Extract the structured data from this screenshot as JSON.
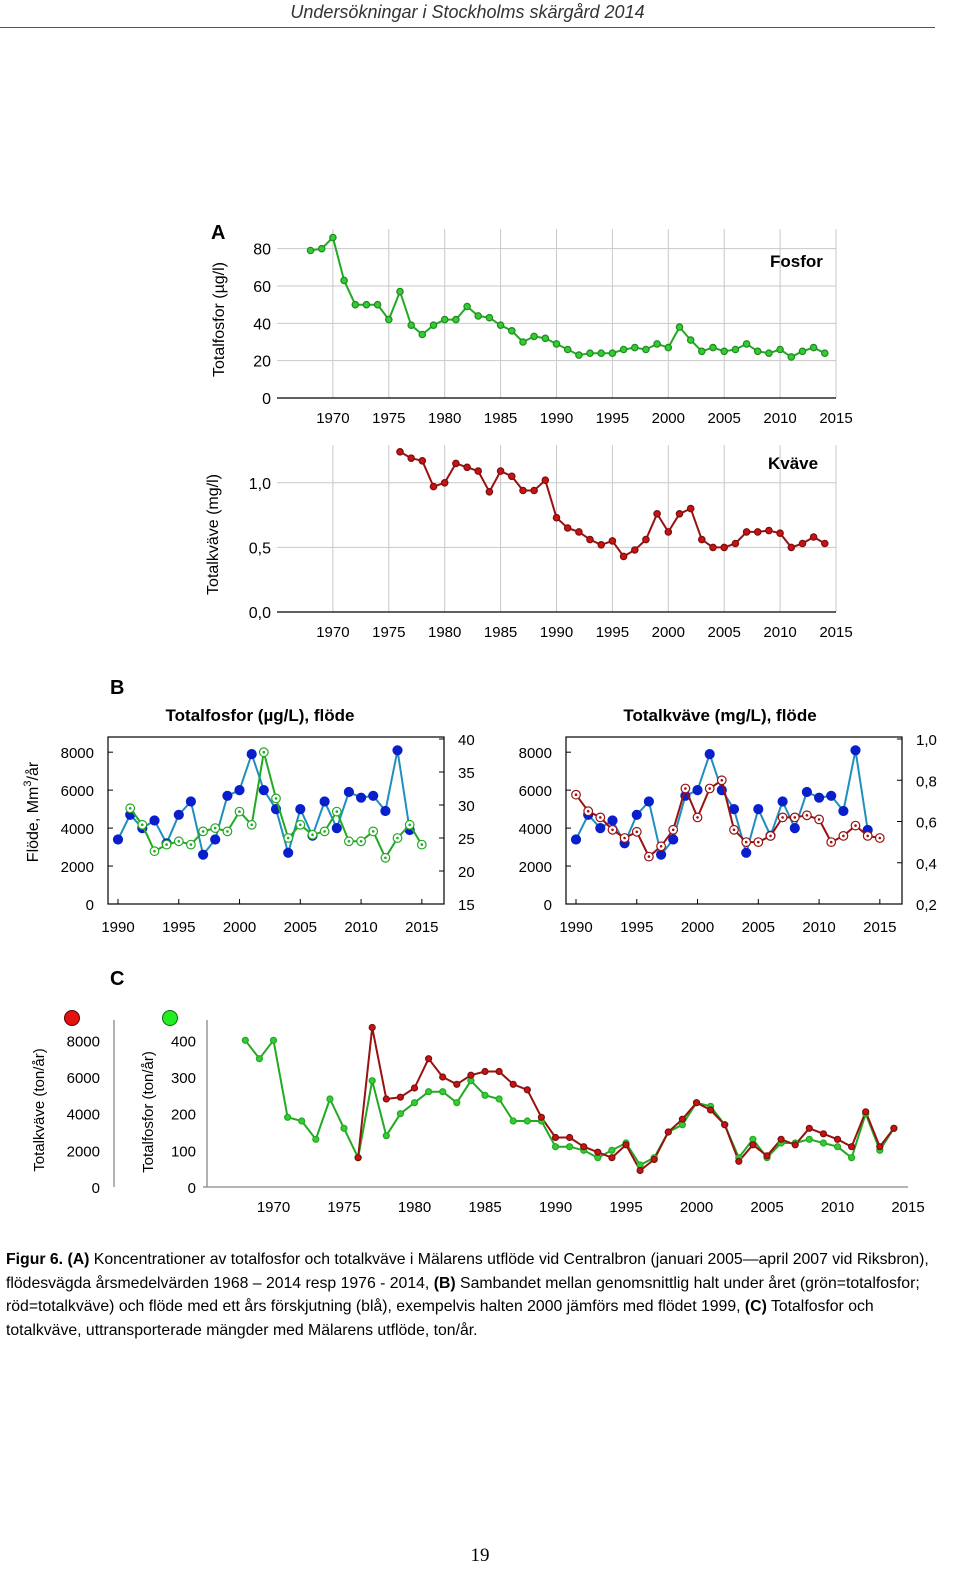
{
  "page": {
    "header": "Undersökningar i Stockholms skärgård 2014",
    "page_number": "19"
  },
  "caption": {
    "label": "Figur 6.",
    "a_tag": "(A)",
    "a_text": " Koncentrationer av totalfosfor och totalkväve i Mälarens utflöde vid Centralbron (januari 2005—april 2007 vid Riksbron), flödesvägda årsmedelvärden 1968 – 2014 resp 1976 - 2014, ",
    "b_tag": "(B)",
    "b_text": " Sambandet mellan genomsnittlig halt under året (grön=totalfosfor; röd=totalkväve) och flöde med ett års förskjutning (blå), exempelvis halten 2000 jämförs med flödet 1999, ",
    "c_tag": "(C)",
    "c_text": " Totalfosfor och totalkväve, uttransporterade mängder med Mälarens utflöde, ton/år."
  },
  "colors": {
    "green": "#33cc33",
    "green_line": "#22aa22",
    "red": "#cc1111",
    "red_line": "#991111",
    "blue": "#0a1fcc",
    "blue_line": "#1f8fbf",
    "grid": "#c8c8c8"
  },
  "chart_data": [
    {
      "id": "A1",
      "panel": "A",
      "type": "line",
      "title": "Fosfor",
      "ylabel": "Totalfosfor (µg/l)",
      "xlim": [
        1965,
        2015
      ],
      "ylim": [
        0,
        90
      ],
      "xticks": [
        "1970",
        "1975",
        "1980",
        "1985",
        "1990",
        "1995",
        "2000",
        "2005",
        "2010",
        "2015"
      ],
      "yticks": [
        "0",
        "20",
        "40",
        "60",
        "80"
      ],
      "series": [
        {
          "name": "Totalfosfor",
          "x": [
            1968,
            1969,
            1970,
            1971,
            1972,
            1973,
            1974,
            1975,
            1976,
            1977,
            1978,
            1979,
            1980,
            1981,
            1982,
            1983,
            1984,
            1985,
            1986,
            1987,
            1988,
            1989,
            1990,
            1991,
            1992,
            1993,
            1994,
            1995,
            1996,
            1997,
            1998,
            1999,
            2000,
            2001,
            2002,
            2003,
            2004,
            2005,
            2006,
            2007,
            2008,
            2009,
            2010,
            2011,
            2012,
            2013,
            2014
          ],
          "values": [
            79,
            80,
            86,
            63,
            50,
            50,
            50,
            42,
            57,
            39,
            34,
            39,
            42,
            42,
            49,
            44,
            43,
            39,
            36,
            30,
            33,
            32,
            29,
            26,
            23,
            24,
            24,
            24,
            26,
            27,
            26,
            29,
            27,
            38,
            31,
            25,
            27,
            25,
            26,
            29,
            25,
            24,
            26,
            22,
            25,
            27,
            24
          ]
        }
      ]
    },
    {
      "id": "A2",
      "panel": "A",
      "type": "line",
      "title": "Kväve",
      "ylabel": "Totalkväve (mg/l)",
      "xlim": [
        1965,
        2015
      ],
      "ylim": [
        0,
        1.3
      ],
      "xticks": [
        "1970",
        "1975",
        "1980",
        "1985",
        "1990",
        "1995",
        "2000",
        "2005",
        "2010",
        "2015"
      ],
      "yticks": [
        "0,0",
        "0,5",
        "1,0"
      ],
      "series": [
        {
          "name": "Totalkväve",
          "x": [
            1976,
            1977,
            1978,
            1979,
            1980,
            1981,
            1982,
            1983,
            1984,
            1985,
            1986,
            1987,
            1988,
            1989,
            1990,
            1991,
            1992,
            1993,
            1994,
            1995,
            1996,
            1997,
            1998,
            1999,
            2000,
            2001,
            2002,
            2003,
            2004,
            2005,
            2006,
            2007,
            2008,
            2009,
            2010,
            2011,
            2012,
            2013,
            2014
          ],
          "values": [
            1.24,
            1.19,
            1.17,
            0.97,
            1.0,
            1.15,
            1.12,
            1.09,
            0.93,
            1.09,
            1.05,
            0.94,
            0.94,
            1.02,
            0.73,
            0.65,
            0.62,
            0.56,
            0.52,
            0.55,
            0.43,
            0.48,
            0.56,
            0.76,
            0.62,
            0.76,
            0.8,
            0.56,
            0.5,
            0.5,
            0.53,
            0.62,
            0.62,
            0.63,
            0.61,
            0.5,
            0.53,
            0.58,
            0.53
          ]
        }
      ]
    },
    {
      "id": "B1",
      "panel": "B",
      "type": "line",
      "title": "Totalfosfor (µg/L), flöde",
      "ylabel": "Flöde, Mm³/år",
      "ylabel_main": "Flöde, Mm",
      "ylabel_sup": "3",
      "ylabel_end": "/år",
      "xlim": [
        1990,
        2016
      ],
      "ylim": [
        0,
        8800
      ],
      "ylim_right": [
        15,
        40
      ],
      "xticks": [
        "1990",
        "1995",
        "2000",
        "2005",
        "2010",
        "2015"
      ],
      "yticks": [
        "0",
        "2000",
        "4000",
        "6000",
        "8000"
      ],
      "yticks_right": [
        "15",
        "20",
        "25",
        "30",
        "35",
        "40"
      ],
      "series": [
        {
          "name": "Flöde",
          "axis": "left",
          "x": [
            1990,
            1991,
            1992,
            1993,
            1994,
            1995,
            1996,
            1997,
            1998,
            1999,
            2000,
            2001,
            2002,
            2003,
            2004,
            2005,
            2006,
            2007,
            2008,
            2009,
            2010,
            2011,
            2012,
            2013,
            2014,
            2015
          ],
          "values": [
            3400,
            4700,
            4000,
            4400,
            3200,
            4700,
            5400,
            2600,
            3400,
            5700,
            6000,
            7900,
            6000,
            5000,
            2700,
            5000,
            3600,
            5400,
            4000,
            5900,
            5600,
            5700,
            4900,
            8100,
            3900,
            null
          ]
        },
        {
          "name": "Totalfosfor",
          "axis": "right",
          "x": [
            1991,
            1992,
            1993,
            1994,
            1995,
            1996,
            1997,
            1998,
            1999,
            2000,
            2001,
            2002,
            2003,
            2004,
            2005,
            2006,
            2007,
            2008,
            2009,
            2010,
            2011,
            2012,
            2013,
            2014,
            2015
          ],
          "values": [
            29.5,
            27,
            23,
            24,
            24.5,
            24,
            26,
            26.5,
            26,
            29,
            27,
            38,
            31,
            25,
            27,
            25.5,
            26,
            29,
            24.5,
            24.5,
            26,
            22,
            25,
            27,
            24
          ]
        }
      ]
    },
    {
      "id": "B2",
      "panel": "B",
      "type": "line",
      "title": "Totalkväve (mg/L), flöde",
      "xlim": [
        1990,
        2016
      ],
      "ylim": [
        0,
        8800
      ],
      "ylim_right": [
        0.2,
        1.0
      ],
      "xticks": [
        "1990",
        "1995",
        "2000",
        "2005",
        "2010",
        "2015"
      ],
      "yticks": [
        "0",
        "2000",
        "4000",
        "6000",
        "8000"
      ],
      "yticks_right": [
        "0,2",
        "0,4",
        "0,6",
        "0,8",
        "1,0"
      ],
      "series": [
        {
          "name": "Flöde",
          "axis": "left",
          "x": [
            1990,
            1991,
            1992,
            1993,
            1994,
            1995,
            1996,
            1997,
            1998,
            1999,
            2000,
            2001,
            2002,
            2003,
            2004,
            2005,
            2006,
            2007,
            2008,
            2009,
            2010,
            2011,
            2012,
            2013,
            2014,
            2015
          ],
          "values": [
            3400,
            4700,
            4000,
            4400,
            3200,
            4700,
            5400,
            2600,
            3400,
            5700,
            6000,
            7900,
            6000,
            5000,
            2700,
            5000,
            3600,
            5400,
            4000,
            5900,
            5600,
            5700,
            4900,
            8100,
            3900,
            null
          ]
        },
        {
          "name": "Totalkväve",
          "axis": "right",
          "x": [
            1990,
            1991,
            1992,
            1993,
            1994,
            1995,
            1996,
            1997,
            1998,
            1999,
            2000,
            2001,
            2002,
            2003,
            2004,
            2005,
            2006,
            2007,
            2008,
            2009,
            2010,
            2011,
            2012,
            2013,
            2014,
            2015
          ],
          "values": [
            0.73,
            0.65,
            0.62,
            0.56,
            0.52,
            0.55,
            0.43,
            0.48,
            0.56,
            0.76,
            0.62,
            0.76,
            0.8,
            0.56,
            0.5,
            0.5,
            0.53,
            0.62,
            0.62,
            0.63,
            0.61,
            0.5,
            0.53,
            0.58,
            0.53,
            0.52
          ]
        }
      ]
    },
    {
      "id": "C",
      "panel": "C",
      "type": "line",
      "ylabel_n": "Totalkväve (ton/år)",
      "ylabel_p": "Totalfosfor (ton/år)",
      "xlim": [
        1965,
        2015
      ],
      "ylim": [
        0,
        9000
      ],
      "ylim_p": [
        0,
        450
      ],
      "xticks": [
        "1970",
        "1975",
        "1980",
        "1985",
        "1990",
        "1995",
        "2000",
        "2005",
        "2010",
        "2015"
      ],
      "yticks_n": [
        "0",
        "2000",
        "4000",
        "6000",
        "8000"
      ],
      "yticks_p": [
        "0",
        "100",
        "200",
        "300",
        "400"
      ],
      "series": [
        {
          "name": "Totalfosfor",
          "color": "green",
          "x": [
            1968,
            1969,
            1970,
            1971,
            1972,
            1973,
            1974,
            1975,
            1976,
            1977,
            1978,
            1979,
            1980,
            1981,
            1982,
            1983,
            1984,
            1985,
            1986,
            1987,
            1988,
            1989,
            1990,
            1991,
            1992,
            1993,
            1994,
            1995,
            1996,
            1997,
            1998,
            1999,
            2000,
            2001,
            2002,
            2003,
            2004,
            2005,
            2006,
            2007,
            2008,
            2009,
            2010,
            2011,
            2012,
            2013,
            2014
          ],
          "values": [
            400,
            350,
            400,
            190,
            180,
            130,
            240,
            160,
            80,
            290,
            140,
            200,
            230,
            260,
            260,
            230,
            290,
            250,
            240,
            180,
            180,
            180,
            110,
            110,
            100,
            80,
            100,
            120,
            60,
            80,
            150,
            170,
            230,
            220,
            170,
            80,
            130,
            80,
            120,
            120,
            130,
            120,
            110,
            80,
            200,
            100,
            160
          ]
        },
        {
          "name": "Totalkväve",
          "color": "red",
          "x": [
            1976,
            1977,
            1978,
            1979,
            1980,
            1981,
            1982,
            1983,
            1984,
            1985,
            1986,
            1987,
            1988,
            1989,
            1990,
            1991,
            1992,
            1993,
            1994,
            1995,
            1996,
            1997,
            1998,
            1999,
            2000,
            2001,
            2002,
            2003,
            2004,
            2005,
            2006,
            2007,
            2008,
            2009,
            2010,
            2011,
            2012,
            2013,
            2014
          ],
          "values": [
            1600,
            8700,
            4800,
            4900,
            5400,
            7000,
            6000,
            5600,
            6100,
            6300,
            6300,
            5600,
            5300,
            3800,
            2700,
            2700,
            2200,
            1900,
            1600,
            2300,
            900,
            1500,
            3000,
            3700,
            4600,
            4200,
            3400,
            1400,
            2300,
            1700,
            2600,
            2300,
            3200,
            2900,
            2600,
            2200,
            4100,
            2200,
            3200
          ]
        }
      ]
    }
  ],
  "panel_labels": {
    "a": "A",
    "b": "B",
    "c": "C"
  }
}
